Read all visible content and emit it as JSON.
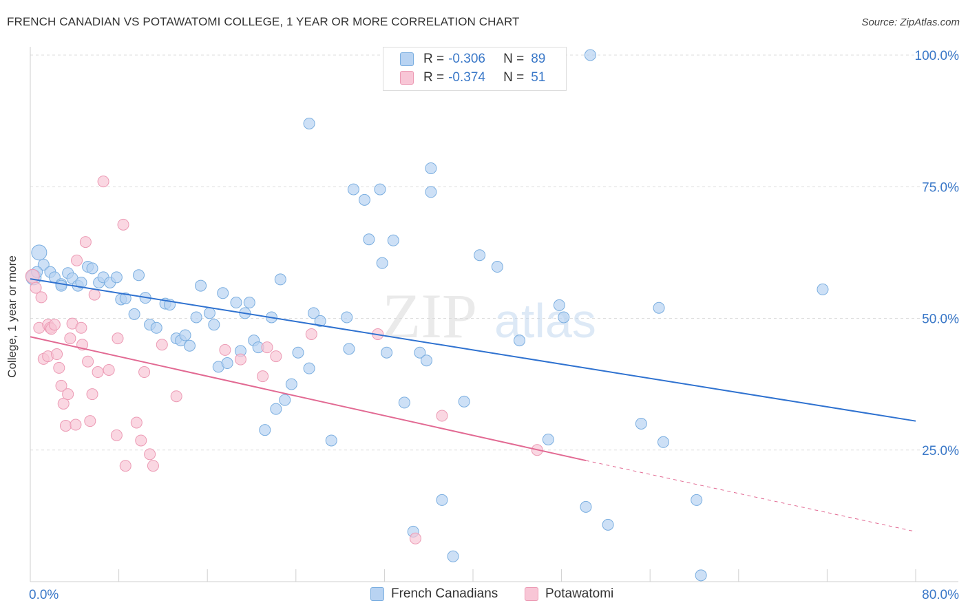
{
  "title": "FRENCH CANADIAN VS POTAWATOMI COLLEGE, 1 YEAR OR MORE CORRELATION CHART",
  "source": "Source: ZipAtlas.com",
  "watermark": {
    "zip": "ZIP",
    "atlas": "atlas"
  },
  "legend_top": {
    "series": [
      {
        "r_label": "R =",
        "r_value": "-0.306",
        "n_label": "N =",
        "n_value": "89"
      },
      {
        "r_label": "R =",
        "r_value": "-0.374",
        "n_label": "N =",
        "n_value": "51"
      }
    ]
  },
  "legend_bottom": {
    "items": [
      "French Canadians",
      "Potawatomi"
    ]
  },
  "colors": {
    "blue_fill": "#b8d3f2",
    "blue_stroke": "#7aaee0",
    "blue_line": "#2f72d0",
    "pink_fill": "#f8c6d6",
    "pink_stroke": "#ec9ab4",
    "pink_line": "#e26a93",
    "axis_label": "#3a78c8",
    "grid": "#dddddd"
  },
  "chart_data": {
    "type": "scatter",
    "title": "FRENCH CANADIAN VS POTAWATOMI COLLEGE, 1 YEAR OR MORE CORRELATION CHART",
    "xlabel": "",
    "ylabel": "College, 1 year or more",
    "xlim": [
      0,
      80
    ],
    "ylim": [
      0,
      100
    ],
    "x_tick_labels": [
      "0.0%",
      "80.0%"
    ],
    "y_tick_labels": [
      "100.0%",
      "75.0%",
      "50.0%",
      "25.0%"
    ],
    "y_tick_values": [
      100,
      75,
      50,
      25
    ],
    "legend_position": "top-center",
    "series": [
      {
        "name": "French Canadians",
        "r": -0.306,
        "n": 89,
        "trend": {
          "x": [
            0,
            80
          ],
          "y": [
            57.5,
            30.5
          ]
        },
        "points": [
          [
            0.3,
            57.8
          ],
          [
            0.8,
            62.5
          ],
          [
            1.2,
            60.2
          ],
          [
            1.8,
            58.8
          ],
          [
            2.2,
            57.8
          ],
          [
            2.8,
            56.5
          ],
          [
            3.4,
            58.6
          ],
          [
            3.8,
            57.6
          ],
          [
            4.3,
            56.2
          ],
          [
            4.6,
            56.8
          ],
          [
            5.2,
            59.8
          ],
          [
            5.6,
            59.5
          ],
          [
            6.2,
            56.8
          ],
          [
            6.6,
            57.8
          ],
          [
            7.2,
            56.8
          ],
          [
            7.8,
            57.8
          ],
          [
            8.2,
            53.6
          ],
          [
            8.6,
            53.8
          ],
          [
            9.4,
            50.8
          ],
          [
            9.8,
            58.2
          ],
          [
            10.4,
            53.9
          ],
          [
            10.8,
            48.8
          ],
          [
            11.4,
            48.2
          ],
          [
            12.2,
            52.8
          ],
          [
            12.6,
            52.6
          ],
          [
            13.2,
            46.2
          ],
          [
            13.6,
            45.8
          ],
          [
            14.0,
            46.8
          ],
          [
            14.4,
            44.8
          ],
          [
            15.0,
            50.2
          ],
          [
            15.4,
            56.2
          ],
          [
            16.2,
            51.0
          ],
          [
            16.6,
            48.8
          ],
          [
            17.0,
            40.8
          ],
          [
            17.4,
            54.8
          ],
          [
            17.8,
            41.5
          ],
          [
            18.6,
            53.0
          ],
          [
            19.0,
            43.8
          ],
          [
            19.4,
            51.0
          ],
          [
            19.8,
            53.0
          ],
          [
            20.2,
            45.8
          ],
          [
            20.6,
            44.5
          ],
          [
            21.2,
            28.8
          ],
          [
            21.8,
            50.2
          ],
          [
            22.2,
            32.8
          ],
          [
            22.6,
            57.4
          ],
          [
            23.0,
            34.5
          ],
          [
            23.6,
            37.5
          ],
          [
            24.2,
            43.5
          ],
          [
            25.2,
            40.5
          ],
          [
            25.6,
            51.0
          ],
          [
            26.2,
            49.5
          ],
          [
            25.2,
            87.0
          ],
          [
            27.2,
            26.8
          ],
          [
            28.6,
            50.2
          ],
          [
            28.8,
            44.2
          ],
          [
            29.2,
            74.5
          ],
          [
            30.2,
            72.5
          ],
          [
            30.6,
            65.0
          ],
          [
            31.6,
            74.5
          ],
          [
            31.8,
            60.5
          ],
          [
            32.2,
            43.5
          ],
          [
            32.8,
            64.8
          ],
          [
            33.8,
            34.0
          ],
          [
            34.6,
            9.5
          ],
          [
            35.2,
            43.5
          ],
          [
            35.8,
            42.0
          ],
          [
            36.2,
            78.5
          ],
          [
            36.2,
            74.0
          ],
          [
            37.2,
            15.5
          ],
          [
            38.2,
            4.8
          ],
          [
            39.2,
            34.2
          ],
          [
            40.6,
            62.0
          ],
          [
            42.2,
            59.8
          ],
          [
            44.2,
            45.8
          ],
          [
            46.8,
            27.0
          ],
          [
            47.8,
            52.5
          ],
          [
            48.2,
            50.2
          ],
          [
            50.2,
            14.2
          ],
          [
            50.6,
            100.0
          ],
          [
            52.2,
            10.8
          ],
          [
            55.2,
            30.0
          ],
          [
            56.8,
            52.0
          ],
          [
            57.2,
            26.5
          ],
          [
            60.2,
            15.5
          ],
          [
            60.6,
            1.2
          ],
          [
            71.6,
            55.5
          ],
          [
            0.6,
            58.8
          ],
          [
            2.8,
            56.2
          ]
        ]
      },
      {
        "name": "Potawatomi",
        "r": -0.374,
        "n": 51,
        "trend": {
          "x": [
            0,
            50.2
          ],
          "y": [
            46.5,
            23.0
          ]
        },
        "trend_dashed": {
          "x": [
            50.2,
            80
          ],
          "y": [
            23.0,
            9.5
          ]
        },
        "points": [
          [
            0.2,
            58.0
          ],
          [
            0.5,
            55.8
          ],
          [
            0.8,
            48.2
          ],
          [
            1.0,
            54.0
          ],
          [
            1.2,
            42.3
          ],
          [
            1.6,
            42.8
          ],
          [
            1.6,
            48.8
          ],
          [
            1.8,
            48.2
          ],
          [
            1.9,
            48.0
          ],
          [
            2.2,
            48.8
          ],
          [
            2.4,
            43.2
          ],
          [
            2.6,
            40.6
          ],
          [
            2.8,
            37.2
          ],
          [
            3.0,
            33.8
          ],
          [
            3.2,
            29.6
          ],
          [
            3.4,
            35.6
          ],
          [
            3.6,
            46.2
          ],
          [
            3.8,
            49.0
          ],
          [
            4.1,
            29.8
          ],
          [
            4.2,
            61.0
          ],
          [
            4.6,
            48.2
          ],
          [
            4.7,
            45.0
          ],
          [
            5.0,
            64.5
          ],
          [
            5.2,
            41.8
          ],
          [
            5.4,
            30.5
          ],
          [
            5.6,
            35.6
          ],
          [
            5.8,
            54.5
          ],
          [
            6.1,
            39.8
          ],
          [
            6.6,
            76.0
          ],
          [
            7.1,
            40.2
          ],
          [
            7.8,
            27.8
          ],
          [
            7.9,
            46.2
          ],
          [
            8.4,
            67.8
          ],
          [
            8.6,
            22.0
          ],
          [
            9.6,
            30.2
          ],
          [
            10.0,
            26.8
          ],
          [
            10.3,
            39.8
          ],
          [
            10.8,
            24.2
          ],
          [
            11.1,
            22.0
          ],
          [
            11.9,
            45.0
          ],
          [
            13.2,
            35.2
          ],
          [
            17.6,
            44.0
          ],
          [
            19.0,
            42.2
          ],
          [
            21.0,
            39.0
          ],
          [
            21.4,
            44.5
          ],
          [
            22.2,
            42.8
          ],
          [
            25.4,
            47.0
          ],
          [
            31.4,
            47.0
          ],
          [
            34.8,
            8.2
          ],
          [
            37.2,
            31.5
          ],
          [
            45.8,
            25.0
          ]
        ]
      }
    ]
  }
}
